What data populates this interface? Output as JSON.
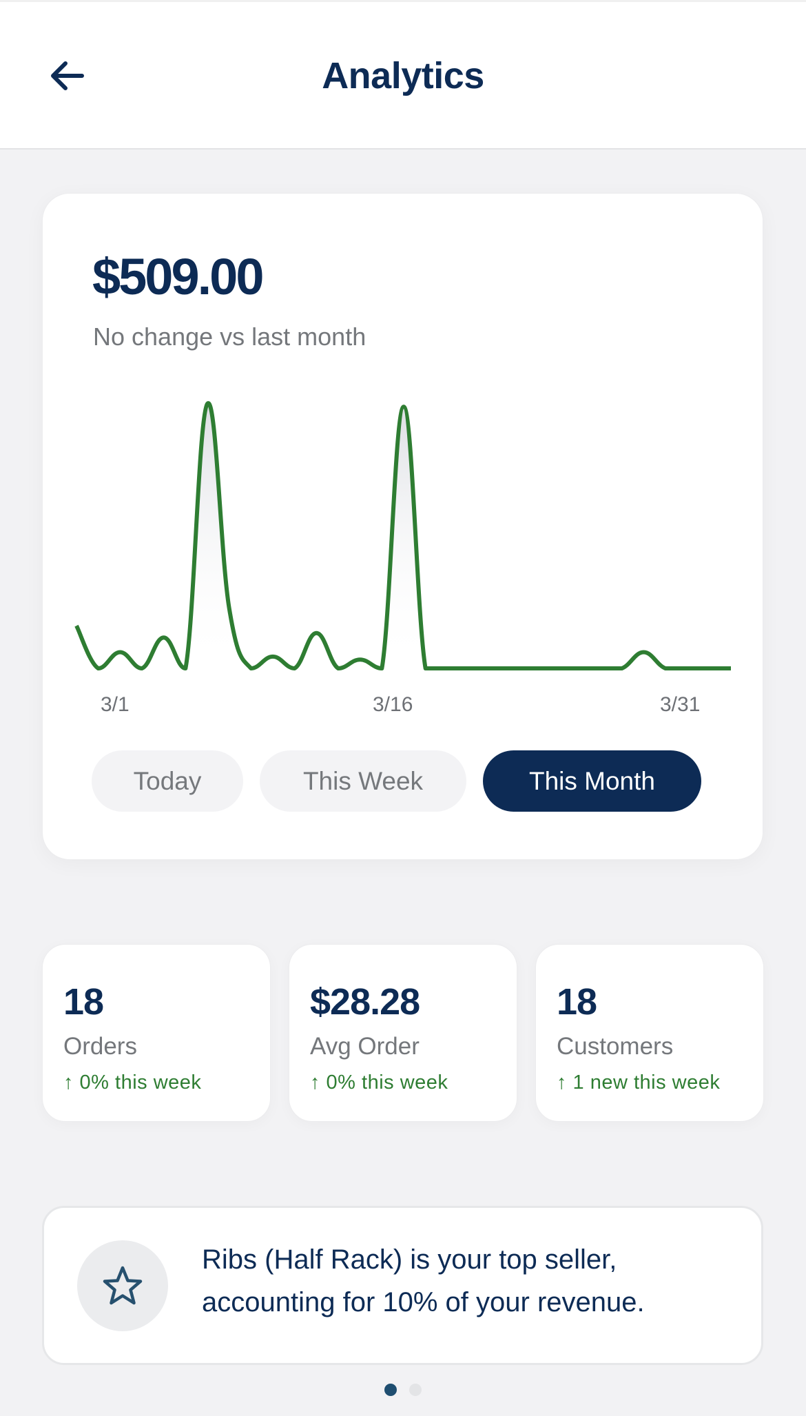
{
  "header": {
    "title": "Analytics",
    "back_icon": "arrow-left-icon"
  },
  "summary": {
    "total": "$509.00",
    "change_text": "No change vs last month"
  },
  "chart_data": {
    "type": "area",
    "title": "",
    "xlabel": "",
    "ylabel": "",
    "x_tick_labels": [
      "3/1",
      "3/16",
      "3/31"
    ],
    "x": [
      "3/1",
      "3/2",
      "3/3",
      "3/4",
      "3/5",
      "3/6",
      "3/7",
      "3/8",
      "3/9",
      "3/10",
      "3/11",
      "3/12",
      "3/13",
      "3/14",
      "3/15",
      "3/16",
      "3/17",
      "3/18",
      "3/19",
      "3/20",
      "3/21",
      "3/22",
      "3/23",
      "3/24",
      "3/25",
      "3/26",
      "3/27",
      "3/28",
      "3/29",
      "3/30",
      "3/31"
    ],
    "series": [
      {
        "name": "Revenue",
        "color": "#2e7d32",
        "values": [
          29,
          0,
          11,
          0,
          21,
          0,
          180,
          41,
          0,
          8,
          0,
          24,
          0,
          6,
          0,
          178,
          0,
          0,
          0,
          0,
          0,
          0,
          0,
          0,
          0,
          0,
          11,
          0,
          0,
          0,
          0
        ]
      }
    ],
    "grid": false,
    "legend": "none",
    "smooth": true,
    "fill": "gradient-gray"
  },
  "ranges": [
    {
      "label": "Today",
      "active": false
    },
    {
      "label": "This Week",
      "active": false
    },
    {
      "label": "This Month",
      "active": true
    }
  ],
  "stats": [
    {
      "value": "18",
      "label": "Orders",
      "change": "↑ 0% this week"
    },
    {
      "value": "$28.28",
      "label": "Avg Order",
      "change": "↑ 0% this week"
    },
    {
      "value": "18",
      "label": "Customers",
      "change": "↑ 1 new this week"
    }
  ],
  "insight": {
    "icon": "star-icon",
    "text": "Ribs (Half Rack) is your top seller, accounting for 10% of your revenue."
  },
  "pagination": {
    "pages": 2,
    "active_index": 0
  },
  "colors": {
    "primary": "#0d2b55",
    "positive": "#2e7d32",
    "muted_text": "#74777b",
    "background": "#f2f2f4"
  }
}
